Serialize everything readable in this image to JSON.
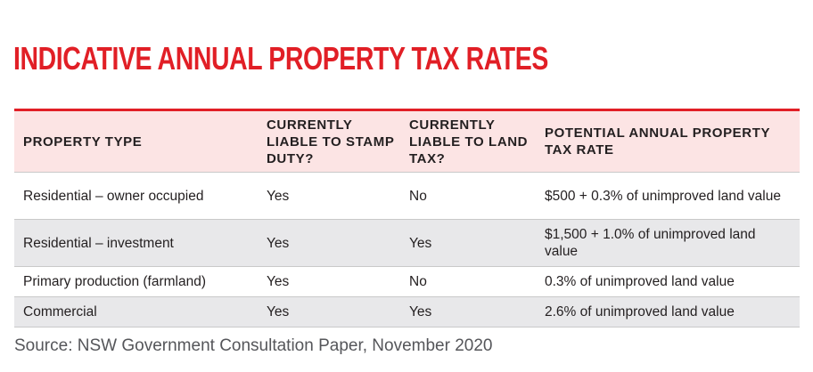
{
  "title": "INDICATIVE ANNUAL PROPERTY TAX RATES",
  "table": {
    "headers": {
      "property_type": "PROPERTY TYPE",
      "stamp_duty": "CURRENTLY LIABLE TO STAMP DUTY?",
      "land_tax": "CURRENTLY LIABLE TO LAND TAX?",
      "tax_rate": "POTENTIAL ANNUAL PROPERTY TAX RATE"
    },
    "rows": [
      {
        "property_type": "Residential – owner occupied",
        "stamp_duty": "Yes",
        "land_tax": "No",
        "tax_rate": "$500 + 0.3% of unimproved land value"
      },
      {
        "property_type": "Residential – investment",
        "stamp_duty": "Yes",
        "land_tax": "Yes",
        "tax_rate": "$1,500 + 1.0% of unimproved land value"
      },
      {
        "property_type": "Primary production (farmland)",
        "stamp_duty": "Yes",
        "land_tax": "No",
        "tax_rate": "0.3% of unimproved land value"
      },
      {
        "property_type": "Commercial",
        "stamp_duty": "Yes",
        "land_tax": "Yes",
        "tax_rate": "2.6% of unimproved land value"
      }
    ]
  },
  "source": "Source: NSW Government Consultation Paper, November 2020",
  "colors": {
    "title": "#e11f26",
    "header_background": "#fce4e4",
    "header_rule": "#e11f26",
    "alt_row_background": "#e8e8ea",
    "source_text": "#55565a"
  }
}
